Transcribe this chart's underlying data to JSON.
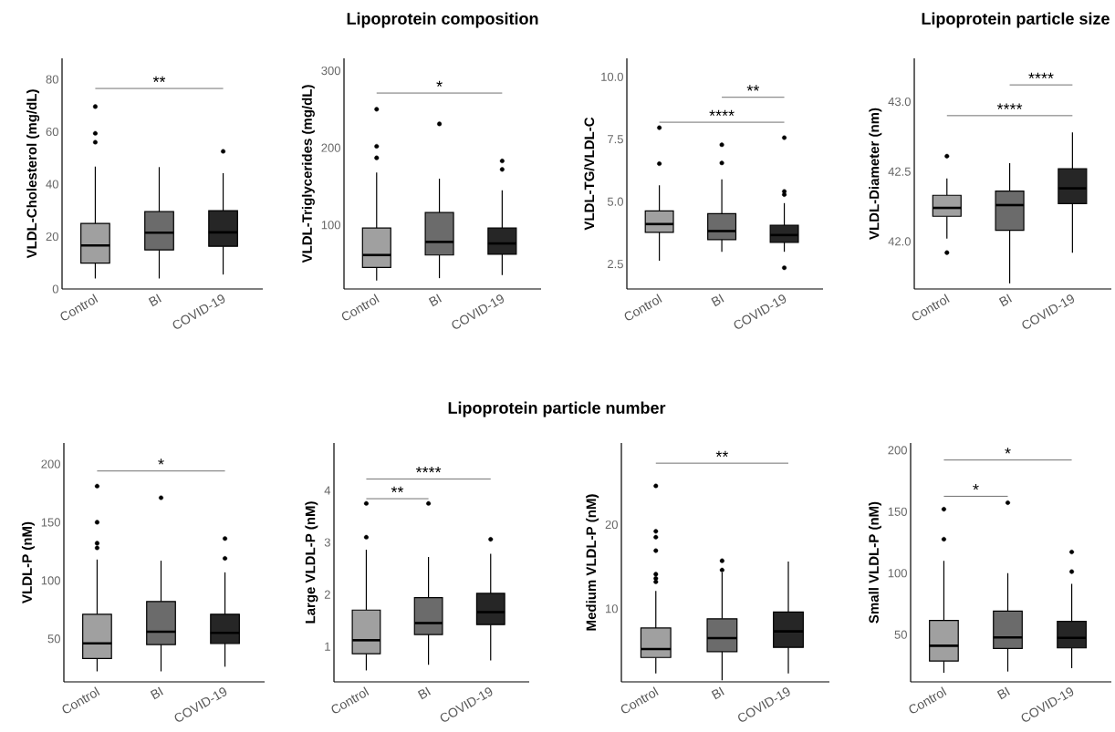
{
  "chart_data": [
    {
      "type": "box",
      "ylabel": "VLDL-Cholesterol (mg/dL)",
      "categories": [
        "Control",
        "BI",
        "COVID-19"
      ],
      "colors": [
        "#a0a0a0",
        "#6b6b6b",
        "#262626"
      ],
      "ylim": [
        0,
        88
      ],
      "yticks": [
        0,
        20,
        40,
        60,
        80
      ],
      "annotations": [
        "**"
      ],
      "boxes": [
        {
          "low": 4,
          "q1": 9.9,
          "median": 16.6,
          "q3": 25,
          "high": 46.7,
          "outliers": [
            56,
            59.4,
            69.6
          ]
        },
        {
          "low": 4,
          "q1": 14.9,
          "median": 21.5,
          "q3": 29.5,
          "high": 46.5
        },
        {
          "low": 5.5,
          "q1": 16.3,
          "median": 21.6,
          "q3": 29.9,
          "high": 44.2,
          "outliers": [
            52.5
          ]
        }
      ]
    },
    {
      "type": "box",
      "title": "Lipoprotein composition",
      "ylabel": "VLDL-Triglycerides (mg/dL)",
      "categories": [
        "Control",
        "BI",
        "COVID-19"
      ],
      "colors": [
        "#a0a0a0",
        "#6b6b6b",
        "#262626"
      ],
      "ylim": [
        17,
        316
      ],
      "yticks": [
        100,
        200,
        300
      ],
      "annotations": [
        "*"
      ],
      "boxes": [
        {
          "low": 28,
          "q1": 45,
          "median": 61,
          "q3": 96,
          "high": 168,
          "outliers": [
            187,
            202,
            250
          ]
        },
        {
          "low": 31,
          "q1": 61,
          "median": 78,
          "q3": 116,
          "high": 160,
          "outliers": [
            231
          ]
        },
        {
          "low": 35,
          "q1": 62,
          "median": 76,
          "q3": 96,
          "high": 145,
          "outliers": [
            172,
            183
          ]
        }
      ]
    },
    {
      "type": "box",
      "ylabel": "VLDL-TG/VLDL-C",
      "categories": [
        "Control",
        "BI",
        "COVID-19"
      ],
      "colors": [
        "#a0a0a0",
        "#6b6b6b",
        "#262626"
      ],
      "ylim": [
        1.5,
        10.74
      ],
      "yticks": [
        {
          "value": 2.5,
          "label": "2.5"
        },
        {
          "value": 5,
          "label": "5.0"
        },
        {
          "value": 7.5,
          "label": "7.5"
        },
        {
          "value": 10,
          "label": "10.0"
        }
      ],
      "annotations": [
        "**",
        "****"
      ],
      "boxes": [
        {
          "low": 2.63,
          "q1": 3.77,
          "median": 4.1,
          "q3": 4.63,
          "high": 5.65,
          "outliers": [
            6.52,
            7.96
          ]
        },
        {
          "low": 2.99,
          "q1": 3.48,
          "median": 3.82,
          "q3": 4.52,
          "high": 5.89,
          "outliers": [
            6.55,
            7.28
          ]
        },
        {
          "low": 2.99,
          "q1": 3.37,
          "median": 3.66,
          "q3": 4.05,
          "high": 4.94,
          "outliers": [
            2.35,
            5.28,
            5.41,
            7.56
          ]
        }
      ]
    },
    {
      "type": "box",
      "title": "Lipoprotein particle size",
      "ylabel": "VLDL-Diameter (nm)",
      "categories": [
        "Control",
        "BI",
        "COVID-19"
      ],
      "colors": [
        "#a0a0a0",
        "#6b6b6b",
        "#262626"
      ],
      "ylim": [
        41.66,
        43.31
      ],
      "yticks": [
        {
          "value": 42,
          "label": "42.0"
        },
        {
          "value": 42.5,
          "label": "42.5"
        },
        {
          "value": 43,
          "label": "43.0"
        }
      ],
      "annotations": [
        "****",
        "****"
      ],
      "boxes": [
        {
          "low": 42.02,
          "q1": 42.18,
          "median": 42.24,
          "q3": 42.33,
          "high": 42.45,
          "outliers": [
            41.92,
            42.61
          ]
        },
        {
          "low": 41.7,
          "q1": 42.08,
          "median": 42.26,
          "q3": 42.36,
          "high": 42.56
        },
        {
          "low": 41.92,
          "q1": 42.27,
          "median": 42.38,
          "q3": 42.52,
          "high": 42.78
        }
      ]
    },
    {
      "type": "box",
      "ylabel": "VLDL-P (nM)",
      "categories": [
        "Control",
        "BI",
        "COVID-19"
      ],
      "colors": [
        "#a0a0a0",
        "#6b6b6b",
        "#262626"
      ],
      "ylim": [
        13,
        218
      ],
      "yticks": [
        50,
        100,
        150,
        200
      ],
      "annotations": [
        "*"
      ],
      "boxes": [
        {
          "low": 22,
          "q1": 33,
          "median": 46,
          "q3": 71,
          "high": 118,
          "outliers": [
            128,
            132,
            150,
            181
          ]
        },
        {
          "low": 22,
          "q1": 45,
          "median": 56,
          "q3": 82,
          "high": 117,
          "outliers": [
            171
          ]
        },
        {
          "low": 26,
          "q1": 46,
          "median": 55,
          "q3": 71,
          "high": 107,
          "outliers": [
            119,
            136
          ]
        }
      ]
    },
    {
      "type": "box",
      "title": "Lipoprotein particle number",
      "ylabel": "Large VLDL-P (nM)",
      "categories": [
        "Control",
        "BI",
        "COVID-19"
      ],
      "colors": [
        "#a0a0a0",
        "#6b6b6b",
        "#262626"
      ],
      "ylim": [
        0.32,
        4.91
      ],
      "yticks": [
        1,
        2,
        3,
        4
      ],
      "annotations": [
        "****",
        "**"
      ],
      "boxes": [
        {
          "low": 0.54,
          "q1": 0.86,
          "median": 1.12,
          "q3": 1.7,
          "high": 2.86,
          "outliers": [
            3.1,
            3.75
          ]
        },
        {
          "low": 0.65,
          "q1": 1.23,
          "median": 1.45,
          "q3": 1.94,
          "high": 2.72,
          "outliers": [
            3.75
          ]
        },
        {
          "low": 0.73,
          "q1": 1.42,
          "median": 1.66,
          "q3": 2.02,
          "high": 2.78,
          "outliers": [
            3.06
          ]
        }
      ]
    },
    {
      "type": "box",
      "ylabel": "Medium VLDL-P (nM)",
      "categories": [
        "Control",
        "BI",
        "COVID-19"
      ],
      "colors": [
        "#a0a0a0",
        "#6b6b6b",
        "#262626"
      ],
      "ylim": [
        1.3,
        29.7
      ],
      "yticks": [
        10,
        20
      ],
      "annotations": [
        "**"
      ],
      "boxes": [
        {
          "low": 2.3,
          "q1": 4.2,
          "median": 5.2,
          "q3": 7.7,
          "high": 12.1,
          "outliers": [
            13.2,
            13.6,
            14.1,
            16.9,
            18.5,
            19.2,
            24.6
          ]
        },
        {
          "low": 1.5,
          "q1": 4.9,
          "median": 6.5,
          "q3": 8.8,
          "high": 14.3,
          "outliers": [
            14.6,
            15.7
          ]
        },
        {
          "low": 2.3,
          "q1": 5.4,
          "median": 7.3,
          "q3": 9.6,
          "high": 15.6
        }
      ]
    },
    {
      "type": "box",
      "ylabel": "Small VLDL-P (nM)",
      "categories": [
        "Control",
        "BI",
        "COVID-19"
      ],
      "colors": [
        "#a0a0a0",
        "#6b6b6b",
        "#262626"
      ],
      "ylim": [
        11.6,
        205.8
      ],
      "yticks": [
        50,
        100,
        150,
        200
      ],
      "annotations": [
        "*",
        "*"
      ],
      "boxes": [
        {
          "low": 19,
          "q1": 28.5,
          "median": 41,
          "q3": 61.6,
          "high": 110,
          "outliers": [
            127.6,
            152
          ]
        },
        {
          "low": 20,
          "q1": 38.7,
          "median": 47.7,
          "q3": 69.2,
          "high": 100,
          "outliers": [
            157.3
          ]
        },
        {
          "low": 22.7,
          "q1": 39.2,
          "median": 47.4,
          "q3": 60.8,
          "high": 91.3,
          "outliers": [
            101.2,
            117.2
          ]
        }
      ]
    }
  ]
}
